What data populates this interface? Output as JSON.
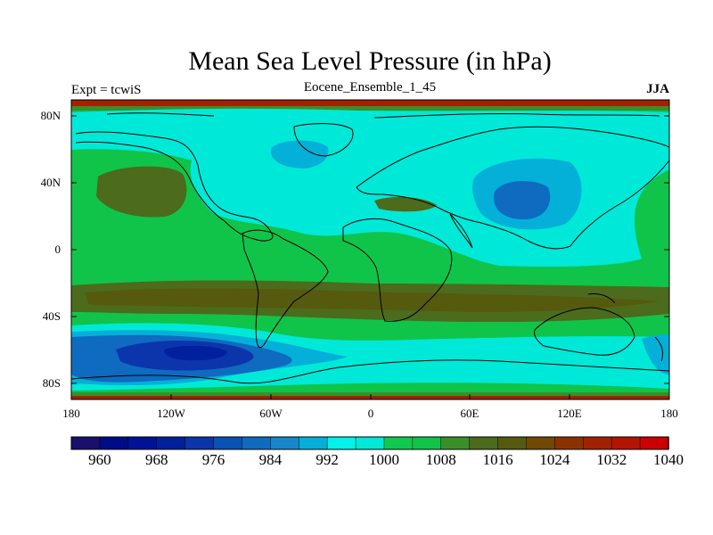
{
  "title": "Mean Sea Level Pressure (in hPa)",
  "left_string": "Expt = tcwiS",
  "center_string": "Eocene_Ensemble_1_45",
  "right_string": "JJA",
  "lat_ticks": [
    "80N",
    "40N",
    "0",
    "40S",
    "80S"
  ],
  "lon_ticks": [
    "180",
    "120W",
    "60W",
    "0",
    "60E",
    "120E",
    "180"
  ],
  "colorbar": {
    "labels": [
      "960",
      "968",
      "976",
      "984",
      "992",
      "1000",
      "1008",
      "1016",
      "1024",
      "1032",
      "1040"
    ],
    "colors": [
      "#1a0f6b",
      "#000c87",
      "#001296",
      "#00209e",
      "#0c35ab",
      "#0a52b6",
      "#0e6bc0",
      "#1887c9",
      "#04b0d8",
      "#00f3e8",
      "#00e9d8",
      "#10c94f",
      "#10c44a",
      "#3a8f2a",
      "#4c6b1c",
      "#555a0e",
      "#704a04",
      "#8c3200",
      "#a12200",
      "#b41400",
      "#cc0000"
    ]
  }
}
